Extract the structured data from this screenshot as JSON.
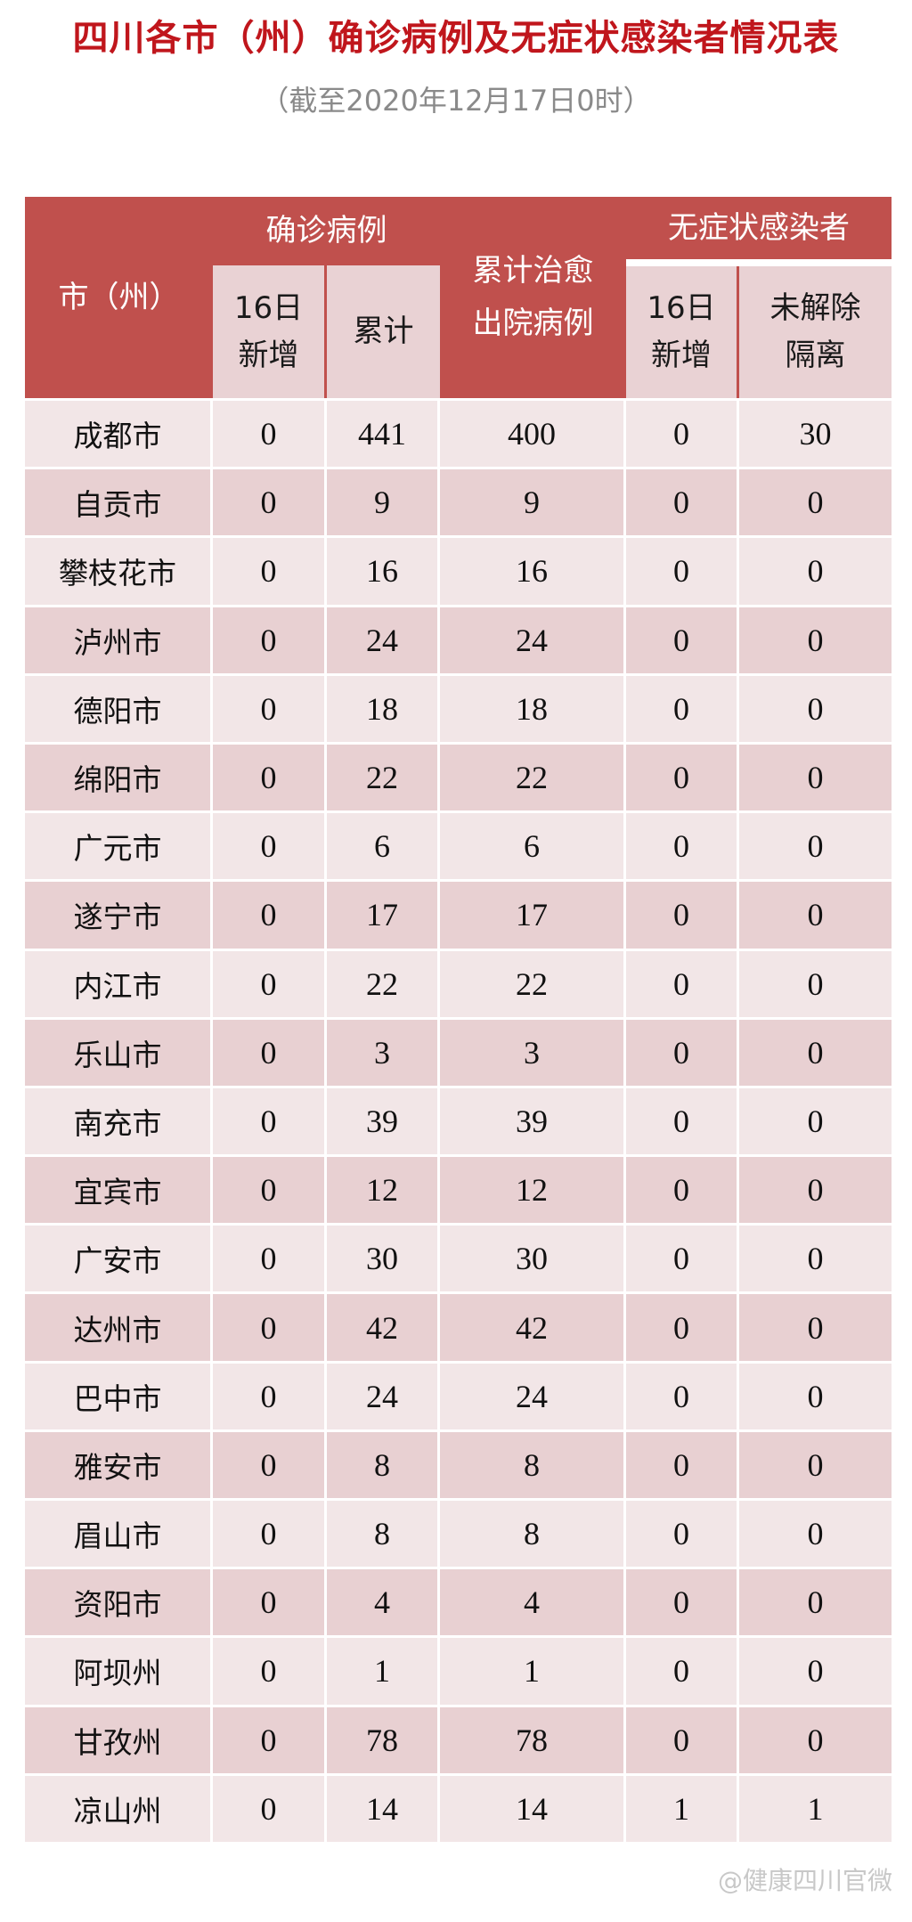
{
  "title": "四川各市（州）确诊病例及无症状感染者情况表",
  "subtitle": "（截至2020年12月17日0时）",
  "header": {
    "city": "市（州）",
    "confirmed_group": "确诊病例",
    "confirmed_new": "16日\n新增",
    "confirmed_total": "累计",
    "recovered": "累计治愈\n出院病例",
    "asymptomatic_group": "无症状感染者",
    "asym_new": "16日\n新增",
    "asym_isolated": "未解除\n隔离"
  },
  "colors": {
    "header": "#c0504d",
    "title": "#c0161c",
    "row_light": "#f2e6e7",
    "row_dark": "#e8d0d2"
  },
  "rows": [
    [
      "成都市",
      "0",
      "441",
      "400",
      "0",
      "30"
    ],
    [
      "自贡市",
      "0",
      "9",
      "9",
      "0",
      "0"
    ],
    [
      "攀枝花市",
      "0",
      "16",
      "16",
      "0",
      "0"
    ],
    [
      "泸州市",
      "0",
      "24",
      "24",
      "0",
      "0"
    ],
    [
      "德阳市",
      "0",
      "18",
      "18",
      "0",
      "0"
    ],
    [
      "绵阳市",
      "0",
      "22",
      "22",
      "0",
      "0"
    ],
    [
      "广元市",
      "0",
      "6",
      "6",
      "0",
      "0"
    ],
    [
      "遂宁市",
      "0",
      "17",
      "17",
      "0",
      "0"
    ],
    [
      "内江市",
      "0",
      "22",
      "22",
      "0",
      "0"
    ],
    [
      "乐山市",
      "0",
      "3",
      "3",
      "0",
      "0"
    ],
    [
      "南充市",
      "0",
      "39",
      "39",
      "0",
      "0"
    ],
    [
      "宜宾市",
      "0",
      "12",
      "12",
      "0",
      "0"
    ],
    [
      "广安市",
      "0",
      "30",
      "30",
      "0",
      "0"
    ],
    [
      "达州市",
      "0",
      "42",
      "42",
      "0",
      "0"
    ],
    [
      "巴中市",
      "0",
      "24",
      "24",
      "0",
      "0"
    ],
    [
      "雅安市",
      "0",
      "8",
      "8",
      "0",
      "0"
    ],
    [
      "眉山市",
      "0",
      "8",
      "8",
      "0",
      "0"
    ],
    [
      "资阳市",
      "0",
      "4",
      "4",
      "0",
      "0"
    ],
    [
      "阿坝州",
      "0",
      "1",
      "1",
      "0",
      "0"
    ],
    [
      "甘孜州",
      "0",
      "78",
      "78",
      "0",
      "0"
    ],
    [
      "凉山州",
      "0",
      "14",
      "14",
      "1",
      "1"
    ]
  ],
  "watermark": "@健康四川官微"
}
